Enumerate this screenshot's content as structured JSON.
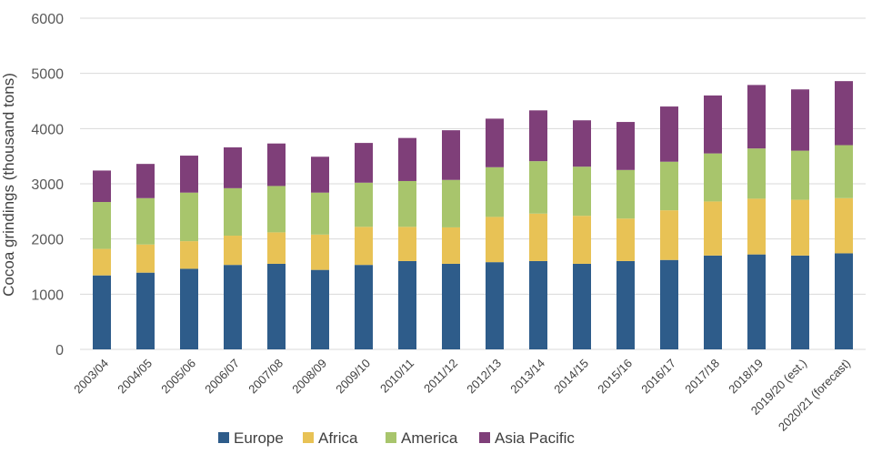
{
  "chart_data": {
    "type": "bar",
    "stacked": true,
    "title": "",
    "xlabel": "",
    "ylabel": "Cocoa grindings (thousand tons)",
    "ylim": [
      0,
      6000
    ],
    "yticks": [
      0,
      1000,
      2000,
      3000,
      4000,
      5000,
      6000
    ],
    "grid": true,
    "legend_position": "bottom",
    "categories": [
      "2003/04",
      "2004/05",
      "2005/06",
      "2006/07",
      "2007/08",
      "2008/09",
      "2009/10",
      "2010/11",
      "2011/12",
      "2012/13",
      "2013/14",
      "2014/15",
      "2015/16",
      "2016/17",
      "2017/18",
      "2018/19",
      "2019/20 (est.)",
      "2020/21 (forecast)"
    ],
    "series": [
      {
        "name": "Europe",
        "color": "#2e5c8a",
        "values": [
          1340,
          1390,
          1460,
          1530,
          1550,
          1440,
          1530,
          1600,
          1550,
          1580,
          1600,
          1550,
          1600,
          1620,
          1700,
          1720,
          1700,
          1740
        ]
      },
      {
        "name": "Africa",
        "color": "#e8c255",
        "values": [
          480,
          510,
          500,
          530,
          570,
          640,
          690,
          620,
          660,
          820,
          860,
          870,
          770,
          900,
          980,
          1010,
          1010,
          1000
        ]
      },
      {
        "name": "America",
        "color": "#a8c56c",
        "values": [
          850,
          840,
          880,
          860,
          840,
          760,
          800,
          830,
          860,
          900,
          950,
          890,
          880,
          880,
          870,
          910,
          890,
          960
        ]
      },
      {
        "name": "Asia Pacific",
        "color": "#7f3f79",
        "values": [
          570,
          620,
          670,
          740,
          770,
          650,
          720,
          780,
          900,
          880,
          920,
          840,
          870,
          1000,
          1050,
          1150,
          1110,
          1160
        ]
      }
    ]
  }
}
